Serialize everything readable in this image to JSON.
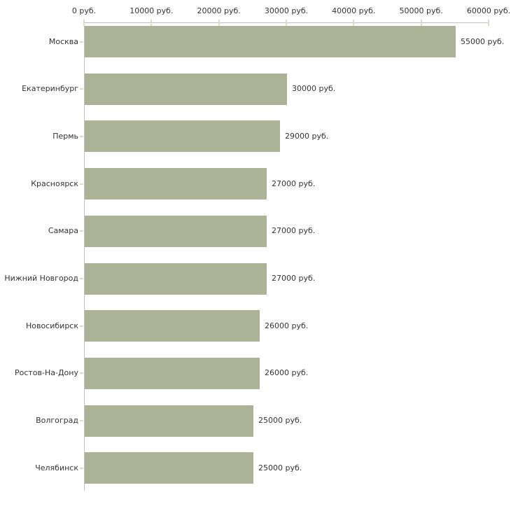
{
  "chart_data": {
    "type": "bar",
    "orientation": "horizontal",
    "title": "",
    "xlabel": "",
    "ylabel": "",
    "xlim": [
      0,
      60000
    ],
    "grid": "off",
    "legend": "none",
    "unit": "руб.",
    "x_tick_labels": [
      "0 руб.",
      "10000 руб.",
      "20000 руб.",
      "30000 руб.",
      "40000 руб.",
      "50000 руб.",
      "60000 руб."
    ],
    "x_tick_values": [
      0,
      10000,
      20000,
      30000,
      40000,
      50000,
      60000
    ],
    "categories": [
      "Москва",
      "Екатеринбург",
      "Пермь",
      "Красноярск",
      "Самара",
      "Нижний Новгород",
      "Новосибирск",
      "Ростов-На-Дону",
      "Волгоград",
      "Челябинск"
    ],
    "values": [
      55000,
      30000,
      29000,
      27000,
      27000,
      27000,
      26000,
      26000,
      25000,
      25000
    ],
    "value_labels": [
      "55000 руб.",
      "30000 руб.",
      "29000 руб.",
      "27000 руб.",
      "27000 руб.",
      "27000 руб.",
      "26000 руб.",
      "26000 руб.",
      "25000 руб.",
      "25000 руб."
    ],
    "colors": {
      "bar": "#acb296",
      "axis_line": "#c0c0c0",
      "tick_mark": "#d9ddc1",
      "text": "#333333",
      "background": "#ffffff"
    }
  }
}
